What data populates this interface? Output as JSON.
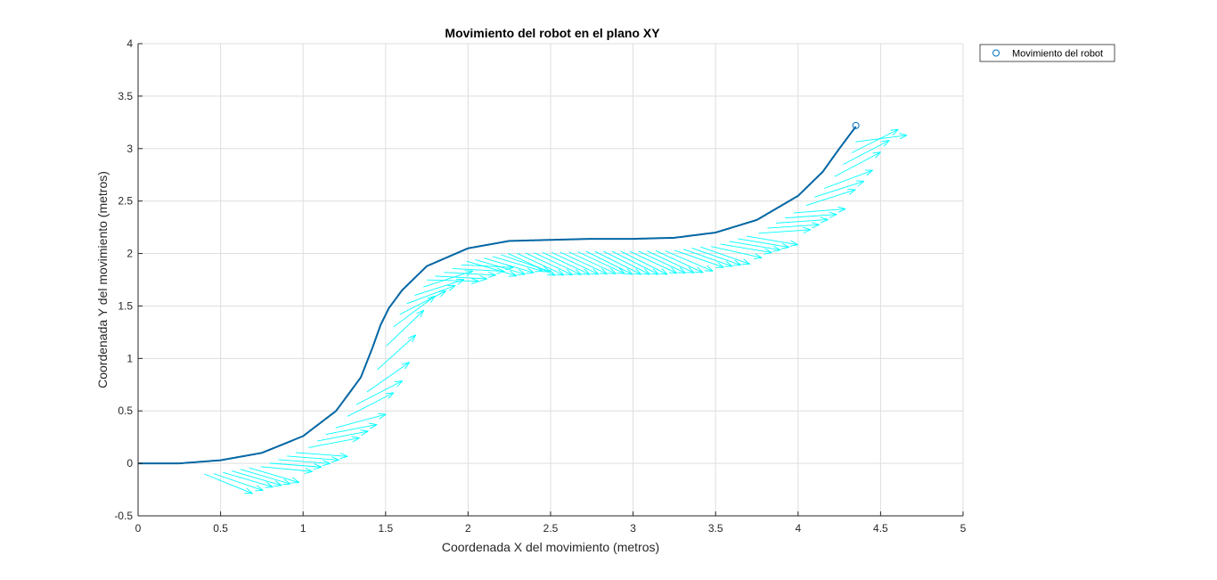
{
  "chart_data": {
    "type": "line",
    "title": "Movimiento del robot en el plano XY",
    "xlabel": "Coordenada X del movimiento (metros)",
    "ylabel": "Coordenada Y del movimiento (metros)",
    "xlim": [
      0,
      5
    ],
    "ylim": [
      -0.5,
      4
    ],
    "xticks": [
      0,
      0.5,
      1,
      1.5,
      2,
      2.5,
      3,
      3.5,
      4,
      4.5,
      5
    ],
    "yticks": [
      -0.5,
      0,
      0.5,
      1,
      1.5,
      2,
      2.5,
      3,
      3.5,
      4
    ],
    "xtick_labels": [
      "0",
      "0.5",
      "1",
      "1.5",
      "2",
      "2.5",
      "3",
      "3.5",
      "4",
      "4.5",
      "5"
    ],
    "ytick_labels": [
      "-0.5",
      "0",
      "0.5",
      "1",
      "1.5",
      "2",
      "2.5",
      "3",
      "3.5",
      "4"
    ],
    "grid": true,
    "legend": {
      "position": "outside-top-right",
      "entries": [
        "Movimiento del robot"
      ]
    },
    "colors": {
      "path": "#0072BD",
      "quiver": "#00FFFF",
      "grid": "#DEDEDE",
      "axis": "#262626"
    },
    "series": [
      {
        "name": "Movimiento del robot",
        "x": [
          0,
          0.25,
          0.5,
          0.75,
          1.0,
          1.2,
          1.35,
          1.42,
          1.47,
          1.52,
          1.6,
          1.75,
          2.0,
          2.25,
          2.5,
          2.75,
          3.0,
          3.25,
          3.5,
          3.75,
          4.0,
          4.15,
          4.25,
          4.35
        ],
        "y": [
          0,
          0.0,
          0.03,
          0.1,
          0.26,
          0.5,
          0.82,
          1.1,
          1.32,
          1.48,
          1.65,
          1.88,
          2.05,
          2.12,
          2.13,
          2.14,
          2.14,
          2.15,
          2.2,
          2.32,
          2.55,
          2.78,
          3.0,
          3.21
        ]
      }
    ],
    "marker": {
      "x": 4.35,
      "y": 3.22,
      "symbol": "circle"
    },
    "quiver": {
      "color": "cyan",
      "x_range": [
        0.45,
        4.35
      ],
      "count": 75
    }
  }
}
